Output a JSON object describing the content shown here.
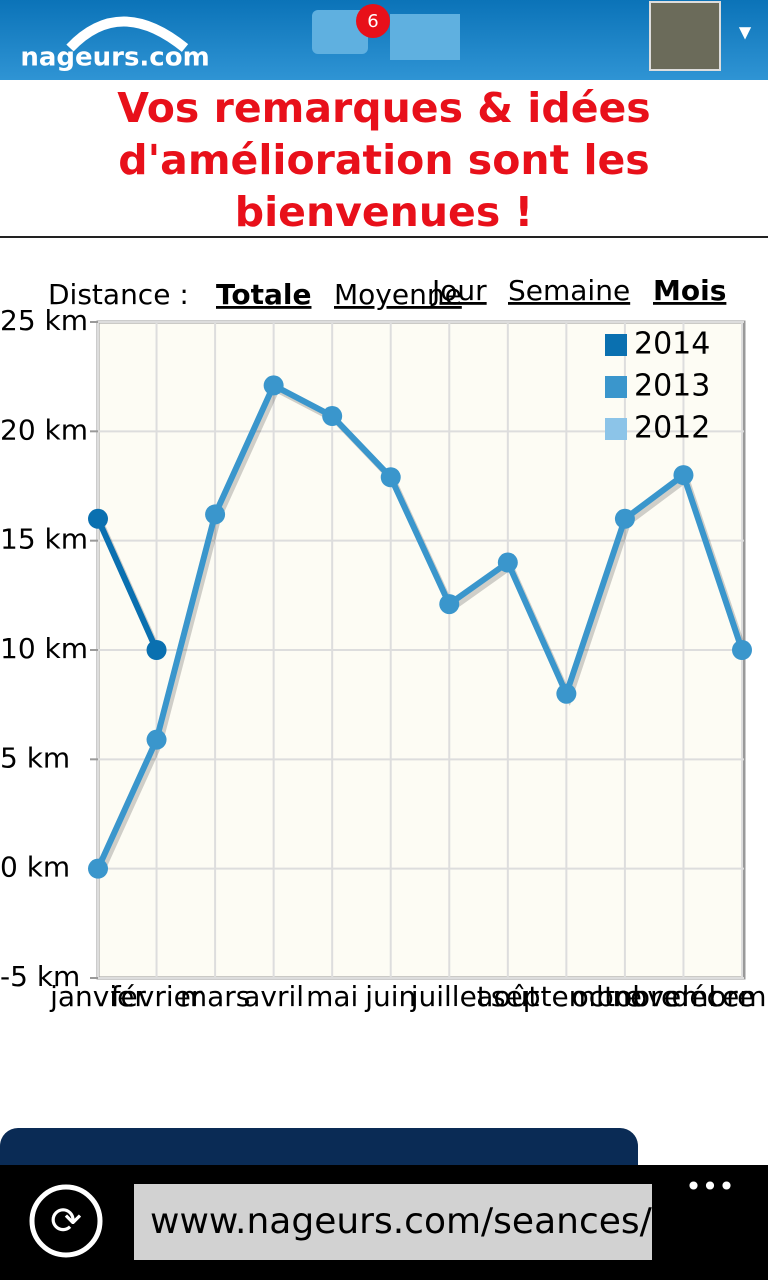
{
  "header": {
    "logo": "nageurs.com",
    "notifications": "6"
  },
  "message": "Vos remarques & idées d'amélioration sont les bienvenues !",
  "controls": {
    "distance_label": "Distance :",
    "totale": "Totale",
    "moyenne": "Moyenne",
    "jour": "Jour",
    "semaine": "Semaine",
    "mois": "Mois"
  },
  "chart_data": {
    "type": "line",
    "categories": [
      "janvier",
      "février",
      "mars",
      "avril",
      "mai",
      "juin",
      "juillet",
      "août",
      "septembre",
      "octobre",
      "novembre",
      "décembre"
    ],
    "series": [
      {
        "name": "2014",
        "color": "#0a70b0",
        "values": [
          16,
          10,
          null,
          null,
          null,
          null,
          null,
          null,
          null,
          null,
          null,
          null
        ]
      },
      {
        "name": "2013",
        "color": "#3a96cc",
        "values": [
          0,
          5.9,
          16.2,
          22.1,
          20.7,
          17.9,
          12.1,
          14,
          8,
          16,
          18,
          10
        ]
      },
      {
        "name": "2012",
        "color": "#8cc4e8",
        "values": [
          null,
          null,
          null,
          null,
          null,
          null,
          null,
          null,
          null,
          null,
          null,
          null
        ]
      }
    ],
    "ylim": [
      -5,
      25
    ],
    "yticks": [
      {
        "value": -5,
        "label": "-5 km"
      },
      {
        "value": 0,
        "label": "0 km"
      },
      {
        "value": 5,
        "label": "5 km"
      },
      {
        "value": 10,
        "label": "10 km"
      },
      {
        "value": 15,
        "label": "15 km"
      },
      {
        "value": 20,
        "label": "20 km"
      },
      {
        "value": 25,
        "label": "25 km"
      }
    ],
    "grid": true,
    "legend": "top-right"
  },
  "browser": {
    "url": "www.nageurs.com/seances/s"
  }
}
